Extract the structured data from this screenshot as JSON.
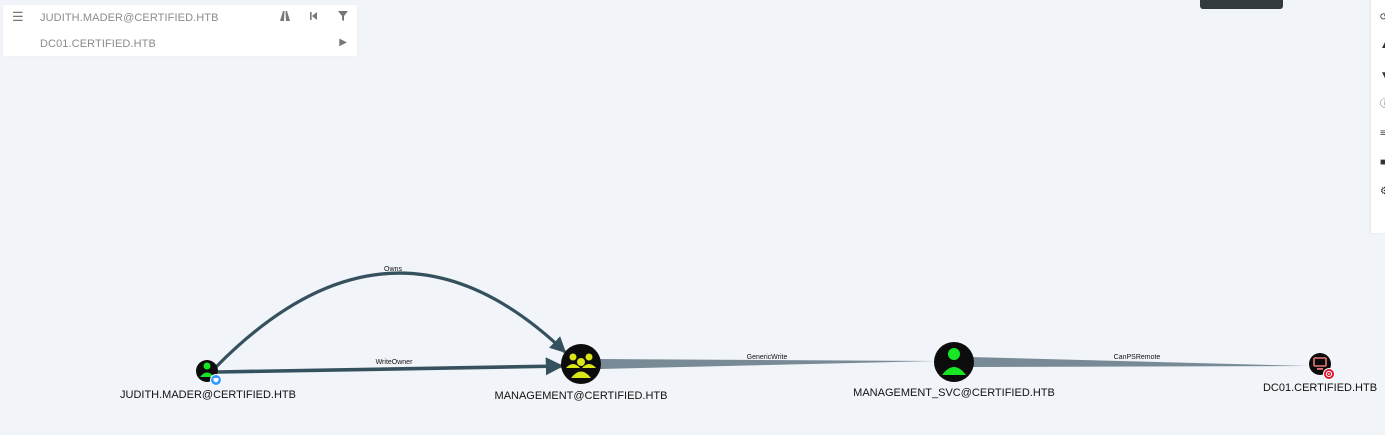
{
  "search": {
    "start_node": "JUDITH.MADER@CERTIFIED.HTB",
    "end_node": "DC01.CERTIFIED.HTB",
    "icons": [
      "menu-icon",
      "pathfinding-icon",
      "back-icon",
      "filter-icon",
      "play-icon"
    ]
  },
  "graph": {
    "nodes": [
      {
        "id": "judith",
        "label": "JUDITH.MADER@CERTIFIED.HTB",
        "type": "user",
        "badge": "owned"
      },
      {
        "id": "management",
        "label": "MANAGEMENT@CERTIFIED.HTB",
        "type": "group"
      },
      {
        "id": "management_svc",
        "label": "MANAGEMENT_SVC@CERTIFIED.HTB",
        "type": "user"
      },
      {
        "id": "dc01",
        "label": "DC01.CERTIFIED.HTB",
        "type": "computer",
        "badge": "high-value"
      }
    ],
    "edges": [
      {
        "from": "judith",
        "to": "management",
        "label": "Owns"
      },
      {
        "from": "judith",
        "to": "management",
        "label": "WriteOwner"
      },
      {
        "from": "management",
        "to": "management_svc",
        "label": "GenericWrite"
      },
      {
        "from": "management_svc",
        "to": "dc01",
        "label": "CanPSRemote"
      }
    ]
  },
  "colors": {
    "background": "#f1f4f8",
    "user_node": "#17e625",
    "group_node": "#dbe617",
    "computer_node": "#e67873",
    "edge_dark": "#36515e",
    "edge_light": "#788a96",
    "owned_badge": "#3399ff",
    "high_value_badge": "#e0102a"
  }
}
